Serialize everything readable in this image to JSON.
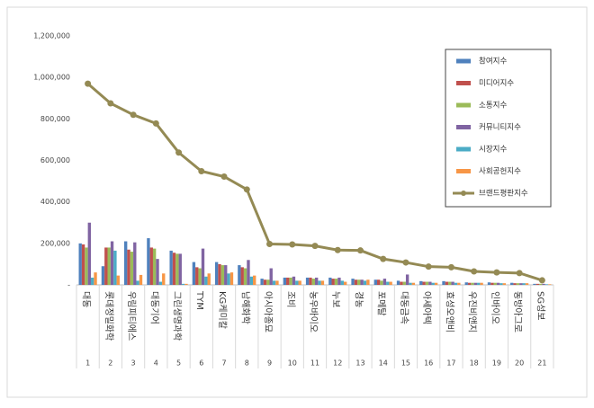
{
  "chart_data": {
    "type": "bar+line",
    "categories": [
      "대동",
      "롯데정밀화학",
      "우림피티에스",
      "대동기어",
      "그린생명과학",
      "TYM",
      "KG케미칼",
      "남해화학",
      "아시아종묘",
      "조비",
      "농우바이오",
      "누보",
      "경농",
      "포메탈",
      "대동금속",
      "아세아텍",
      "효성오앤비",
      "우진비앤지",
      "인바이오",
      "동방아그로",
      "SG성보"
    ],
    "ranks": [
      "1",
      "2",
      "3",
      "4",
      "5",
      "6",
      "7",
      "8",
      "9",
      "10",
      "11",
      "12",
      "13",
      "14",
      "15",
      "16",
      "17",
      "18",
      "19",
      "20",
      "21"
    ],
    "series": [
      {
        "name": "참여지수",
        "color": "#4F81BD",
        "type": "bar",
        "values": [
          200000,
          90000,
          210000,
          225000,
          165000,
          110000,
          110000,
          95000,
          30000,
          35000,
          35000,
          35000,
          30000,
          25000,
          20000,
          18000,
          18000,
          12000,
          12000,
          10000,
          5000
        ]
      },
      {
        "name": "미디어지수",
        "color": "#C0504D",
        "type": "bar",
        "values": [
          195000,
          180000,
          170000,
          180000,
          155000,
          85000,
          100000,
          85000,
          25000,
          35000,
          35000,
          30000,
          25000,
          25000,
          15000,
          15000,
          15000,
          10000,
          10000,
          8000,
          5000
        ]
      },
      {
        "name": "소통지수",
        "color": "#9BBB59",
        "type": "bar",
        "values": [
          180000,
          180000,
          160000,
          175000,
          150000,
          80000,
          95000,
          80000,
          25000,
          35000,
          30000,
          30000,
          25000,
          20000,
          15000,
          15000,
          15000,
          10000,
          10000,
          8000,
          5000
        ]
      },
      {
        "name": "커뮤니티지수",
        "color": "#8064A2",
        "type": "bar",
        "values": [
          300000,
          210000,
          205000,
          125000,
          150000,
          175000,
          95000,
          120000,
          80000,
          40000,
          35000,
          35000,
          25000,
          30000,
          50000,
          15000,
          15000,
          10000,
          10000,
          8000,
          5000
        ]
      },
      {
        "name": "시장지수",
        "color": "#4BACC6",
        "type": "bar",
        "values": [
          35000,
          165000,
          20000,
          15000,
          5000,
          40000,
          55000,
          40000,
          20000,
          20000,
          20000,
          20000,
          20000,
          15000,
          10000,
          10000,
          10000,
          10000,
          8000,
          8000,
          3000
        ]
      },
      {
        "name": "사회공헌지수",
        "color": "#F79646",
        "type": "bar",
        "values": [
          60000,
          45000,
          48000,
          55000,
          5000,
          55000,
          60000,
          45000,
          20000,
          20000,
          20000,
          15000,
          25000,
          15000,
          10000,
          10000,
          10000,
          10000,
          8000,
          8000,
          3000
        ]
      },
      {
        "name": "브랜드평판지수",
        "color": "#948A54",
        "type": "line",
        "values": [
          970000,
          875000,
          820000,
          778000,
          638000,
          548000,
          522000,
          460000,
          197000,
          195000,
          188000,
          168000,
          166000,
          125000,
          108000,
          88000,
          85000,
          65000,
          60000,
          57000,
          22000
        ]
      }
    ],
    "ylim": [
      0,
      1200000
    ],
    "yticks": [
      {
        "value": 0,
        "label": "-"
      },
      {
        "value": 200000,
        "label": "200,000"
      },
      {
        "value": 400000,
        "label": "400,000"
      },
      {
        "value": 600000,
        "label": "600,000"
      },
      {
        "value": 800000,
        "label": "800,000"
      },
      {
        "value": 1000000,
        "label": "1,000,000"
      },
      {
        "value": 1200000,
        "label": "1,200,000"
      }
    ],
    "grid": false
  }
}
